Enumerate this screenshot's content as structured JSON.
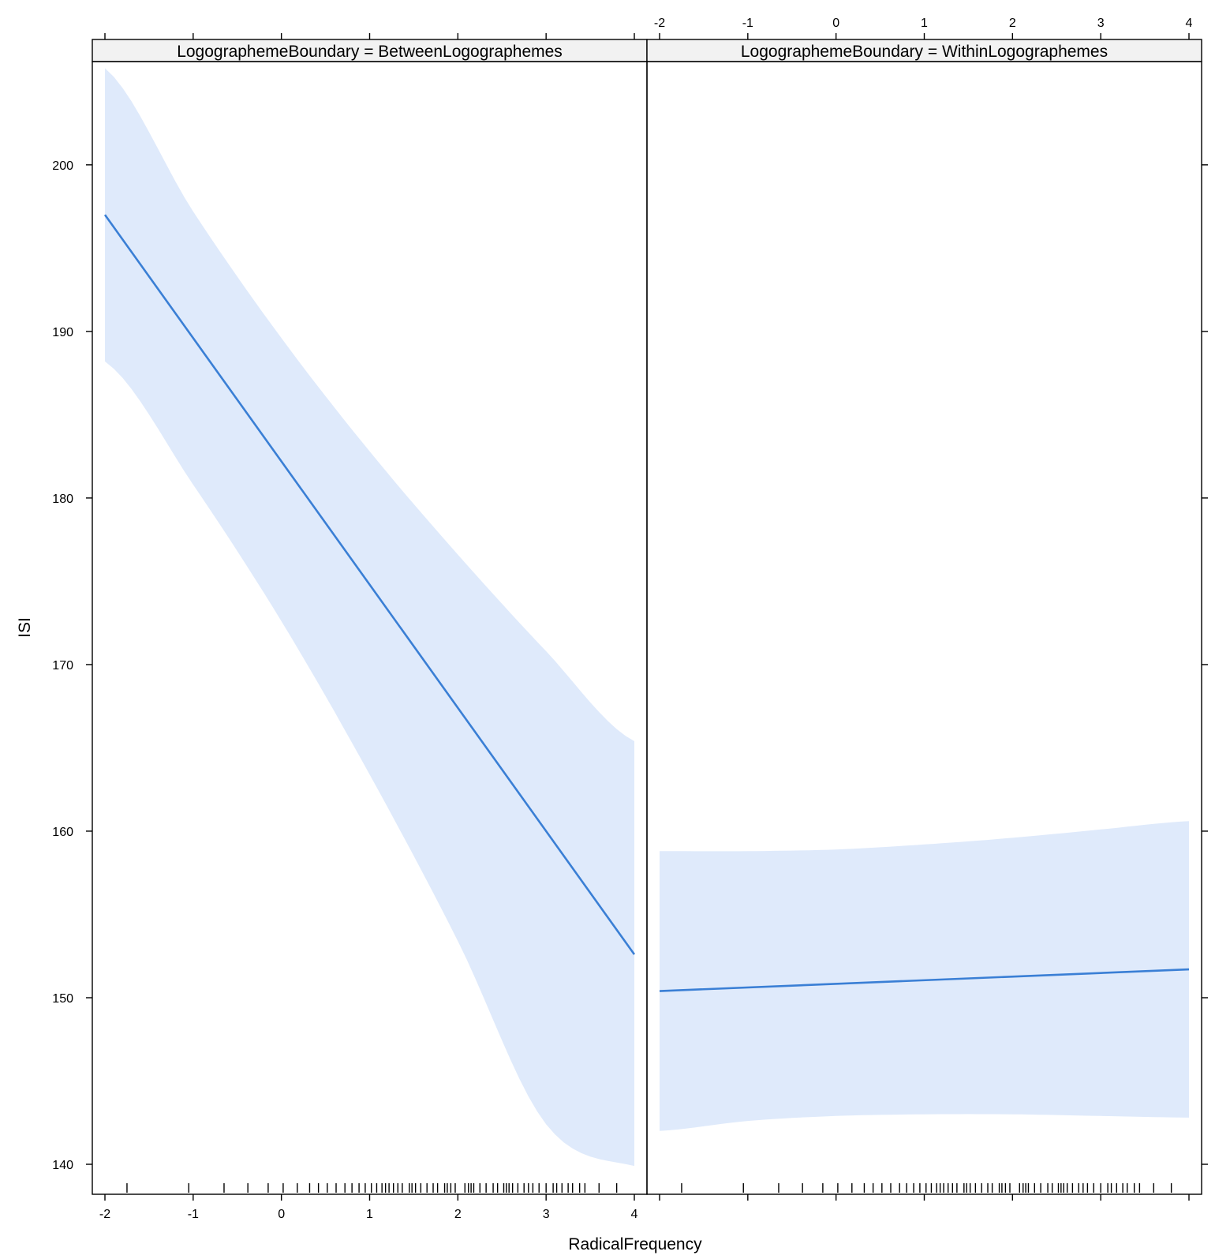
{
  "chart_data": {
    "type": "line",
    "xlabel": "RadicalFrequency",
    "ylabel": "ISI",
    "xlim": [
      -2,
      4
    ],
    "ylim": [
      138.2,
      206.2
    ],
    "x_ticks": [
      -2,
      -1,
      0,
      1,
      2,
      3,
      4
    ],
    "y_ticks": [
      140,
      150,
      160,
      170,
      180,
      190,
      200
    ],
    "colors": {
      "line": "#3a7fd5",
      "band": "#dfeafb",
      "strip": "#f2f2f2"
    },
    "panels": [
      {
        "strip_label": "LogographemeBoundary = BetweenLogographemes",
        "line": {
          "x": [
            -2,
            4
          ],
          "y": [
            197.0,
            152.6
          ]
        },
        "band": {
          "x": [
            -2,
            -1,
            0,
            1,
            2,
            3,
            4
          ],
          "upper": [
            205.8,
            197.2,
            189.6,
            182.8,
            176.6,
            170.8,
            165.4
          ],
          "lower": [
            188.2,
            180.8,
            172.6,
            163.4,
            153.4,
            142.4,
            139.9
          ]
        }
      },
      {
        "strip_label": "LogographemeBoundary = WithinLogographemes",
        "line": {
          "x": [
            -2,
            4
          ],
          "y": [
            150.4,
            151.7
          ]
        },
        "band": {
          "x": [
            -2,
            -1,
            0,
            1,
            2,
            3,
            4
          ],
          "upper": [
            158.8,
            158.8,
            158.9,
            159.2,
            159.6,
            160.1,
            160.6
          ],
          "lower": [
            142.0,
            142.6,
            142.9,
            143.0,
            143.0,
            142.9,
            142.8
          ]
        }
      }
    ],
    "rug": [
      -1.75,
      -1.05,
      -0.65,
      -0.38,
      -0.15,
      0.02,
      0.18,
      0.32,
      0.42,
      0.52,
      0.62,
      0.72,
      0.8,
      0.88,
      0.95,
      1.02,
      1.08,
      1.14,
      1.18,
      1.22,
      1.27,
      1.32,
      1.37,
      1.45,
      1.48,
      1.52,
      1.58,
      1.65,
      1.72,
      1.77,
      1.85,
      1.88,
      1.92,
      1.97,
      2.08,
      2.12,
      2.15,
      2.18,
      2.25,
      2.32,
      2.4,
      2.45,
      2.52,
      2.55,
      2.58,
      2.62,
      2.68,
      2.75,
      2.8,
      2.85,
      2.92,
      3.0,
      3.08,
      3.12,
      3.18,
      3.25,
      3.3,
      3.38,
      3.44,
      3.6,
      3.8
    ]
  }
}
